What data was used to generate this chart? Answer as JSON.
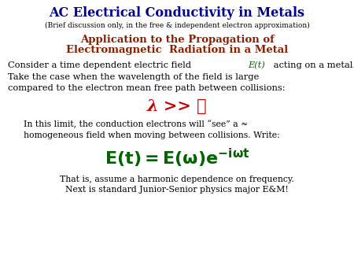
{
  "bg_color": "#ffffff",
  "title1": "AC Electrical Conductivity in Metals",
  "title1_color": "#00008B",
  "title2": "(Brief discussion only, in the free & independent electron approximation)",
  "title2_color": "#000000",
  "title3_line1": "Application to the Propagation of",
  "title3_line2": "Electromagnetic  Radiation in a Metal",
  "title3_color": "#8B2000",
  "body1_pre": "Consider a time dependent electric field ",
  "body1_Et": "E(t)",
  "body1_post": " acting on a metal.",
  "body2": "Take the case when the wavelength of the field is large",
  "body3": "compared to the electron mean free path between collisions:",
  "body_color": "#000000",
  "Et_color": "#006400",
  "lambda_text": "λ >> ℓ",
  "lambda_color": "#CC0000",
  "indent1": "In this limit, the conduction electrons will “see” a ≈",
  "indent2": "homogeneous field when moving between collisions. Write:",
  "indent_color": "#000000",
  "eq_color": "#006400",
  "footer1": "That is, assume a harmonic dependence on frequency.",
  "footer2": "Next is standard Junior-Senior physics major E&M!",
  "footer_color": "#000000",
  "title1_fs": 11.5,
  "title2_fs": 6.5,
  "title3_fs": 9.5,
  "body_fs": 8.2,
  "lambda_fs": 15,
  "indent_fs": 7.8,
  "eq_fs": 16,
  "footer_fs": 7.8
}
